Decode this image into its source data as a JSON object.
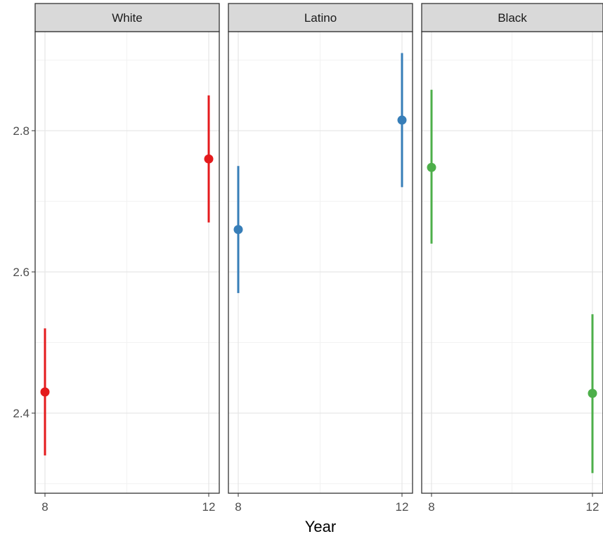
{
  "chart_data": {
    "type": "scatter",
    "variant": "point-with-errorbars-faceted",
    "xlabel": "Year",
    "ylabel": "",
    "title": "",
    "x_ticks": [
      8,
      12
    ],
    "y_ticks": [
      2.4,
      2.6,
      2.8
    ],
    "xlim": [
      7.9,
      12.1
    ],
    "ylim": [
      2.3,
      2.94
    ],
    "grid": true,
    "legend": "none",
    "facets": [
      {
        "label": "White",
        "color": "#e41a1c",
        "points": [
          {
            "x": 8,
            "y": 2.43,
            "ymin": 2.34,
            "ymax": 2.52
          },
          {
            "x": 12,
            "y": 2.76,
            "ymin": 2.67,
            "ymax": 2.85
          }
        ]
      },
      {
        "label": "Latino",
        "color": "#377eb8",
        "points": [
          {
            "x": 8,
            "y": 2.66,
            "ymin": 2.57,
            "ymax": 2.75
          },
          {
            "x": 12,
            "y": 2.815,
            "ymin": 2.72,
            "ymax": 2.91
          }
        ]
      },
      {
        "label": "Black",
        "color": "#4daf4a",
        "points": [
          {
            "x": 8,
            "y": 2.748,
            "ymin": 2.64,
            "ymax": 2.858
          },
          {
            "x": 12,
            "y": 2.428,
            "ymin": 2.315,
            "ymax": 2.54
          }
        ]
      }
    ]
  }
}
